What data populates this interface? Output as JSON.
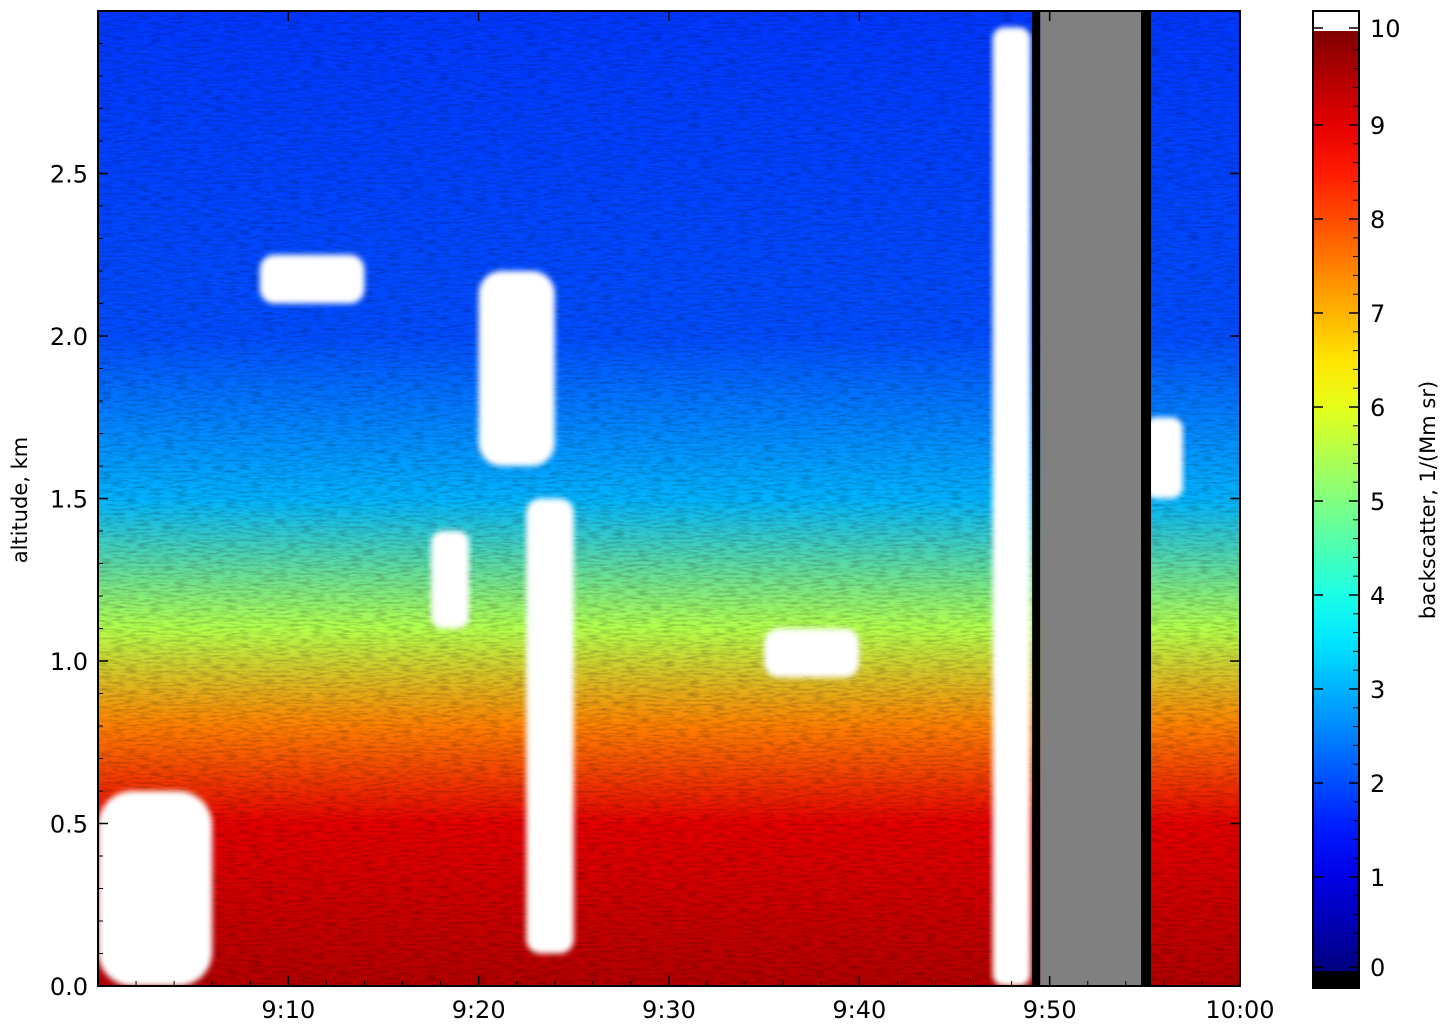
{
  "chart_data": {
    "type": "heatmap",
    "title": "",
    "xlabel": "",
    "ylabel": "altitude, km",
    "colorbar_label": "backscatter, 1/(Mm sr)",
    "x_range": [
      "9:00",
      "10:00"
    ],
    "xlim_minutes_after_9": [
      0,
      60
    ],
    "ylim": [
      0,
      3.0
    ],
    "x_ticks": [
      {
        "label": "9:10",
        "value": 10
      },
      {
        "label": "9:20",
        "value": 20
      },
      {
        "label": "9:30",
        "value": 30
      },
      {
        "label": "9:40",
        "value": 40
      },
      {
        "label": "9:50",
        "value": 50
      },
      {
        "label": "10:00",
        "value": 60
      }
    ],
    "y_ticks": [
      {
        "label": "0.0",
        "value": 0.0
      },
      {
        "label": "0.5",
        "value": 0.5
      },
      {
        "label": "1.0",
        "value": 1.0
      },
      {
        "label": "1.5",
        "value": 1.5
      },
      {
        "label": "2.0",
        "value": 2.0
      },
      {
        "label": "2.5",
        "value": 2.5
      }
    ],
    "colorbar": {
      "min": 0,
      "max": 10,
      "colormap": "jet",
      "under_color": "#000000",
      "over_color": "#ffffff",
      "ticks": [
        {
          "label": "0",
          "value": 0
        },
        {
          "label": "1",
          "value": 1
        },
        {
          "label": "2",
          "value": 2
        },
        {
          "label": "3",
          "value": 3
        },
        {
          "label": "4",
          "value": 4
        },
        {
          "label": "5",
          "value": 5
        },
        {
          "label": "6",
          "value": 6
        },
        {
          "label": "7",
          "value": 7
        },
        {
          "label": "8",
          "value": 8
        },
        {
          "label": "9",
          "value": 9
        },
        {
          "label": "10",
          "value": 10
        }
      ]
    },
    "no_data_color": "#808080",
    "no_data_interval_minutes": [
      49.5,
      54.8
    ],
    "profile_by_altitude": [
      {
        "altitude_km": 0.0,
        "backscatter": 9.5
      },
      {
        "altitude_km": 0.5,
        "backscatter": 9.0
      },
      {
        "altitude_km": 0.8,
        "backscatter": 7.5
      },
      {
        "altitude_km": 1.1,
        "backscatter": 5.5
      },
      {
        "altitude_km": 1.5,
        "backscatter": 3.0
      },
      {
        "altitude_km": 2.0,
        "backscatter": 2.0
      },
      {
        "altitude_km": 3.0,
        "backscatter": 1.8
      }
    ],
    "saturated_regions": [
      {
        "t_min": [
          47.0,
          49.0
        ],
        "alt_km": [
          0.0,
          2.95
        ]
      },
      {
        "t_min": [
          20.0,
          24.0
        ],
        "alt_km": [
          1.6,
          2.2
        ]
      },
      {
        "t_min": [
          22.5,
          25.0
        ],
        "alt_km": [
          0.1,
          1.5
        ]
      },
      {
        "t_min": [
          17.5,
          19.5
        ],
        "alt_km": [
          1.1,
          1.4
        ]
      },
      {
        "t_min": [
          8.5,
          14.0
        ],
        "alt_km": [
          2.1,
          2.25
        ]
      },
      {
        "t_min": [
          35.0,
          40.0
        ],
        "alt_km": [
          0.95,
          1.1
        ]
      },
      {
        "t_min": [
          55.0,
          57.0
        ],
        "alt_km": [
          1.5,
          1.75
        ]
      },
      {
        "t_min": [
          0.0,
          6.0
        ],
        "alt_km": [
          0.0,
          0.6
        ]
      }
    ]
  }
}
